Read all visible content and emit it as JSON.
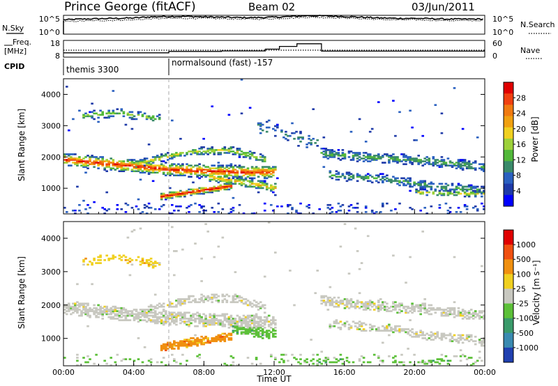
{
  "header": {
    "station": "Prince George (fitACF)",
    "beam": "Beam 02",
    "date": "03/Jun/2011"
  },
  "chart_data": [
    {
      "type": "line",
      "panel": "noise",
      "left_label": "N.Sky",
      "right_label": "N.Search",
      "left_ticks": [
        "10^5",
        "10^0"
      ],
      "right_ticks": [
        "10^5",
        "10^0"
      ],
      "x": [
        0,
        1,
        2,
        3,
        4,
        5,
        6,
        7,
        8,
        9,
        10,
        11,
        12,
        13,
        14,
        15,
        16,
        17,
        18,
        19,
        20,
        21,
        22,
        23,
        24
      ],
      "series": [
        {
          "name": "N.Sky",
          "values": [
            3.8,
            4.0,
            4.1,
            4.2,
            4.3,
            4.6,
            4.7,
            4.7,
            4.6,
            4.5,
            4.4,
            4.4,
            4.5,
            4.7,
            4.9,
            4.8,
            4.7,
            4.5,
            4.3,
            4.2,
            4.2,
            4.1,
            4.0,
            4.0,
            4.0
          ]
        },
        {
          "name": "N.Search",
          "values": [
            3.3,
            3.5,
            3.6,
            3.7,
            3.8,
            4.1,
            4.2,
            4.2,
            4.2,
            4.1,
            4.0,
            4.0,
            4.1,
            4.3,
            4.5,
            4.4,
            4.3,
            4.1,
            3.9,
            3.8,
            3.8,
            3.7,
            3.6,
            3.6,
            3.6
          ]
        }
      ],
      "ylim": [
        0,
        5
      ]
    },
    {
      "type": "line",
      "panel": "frequency",
      "left_label_1": "Freq.",
      "left_label_2": "[MHz]",
      "right_label": "Nave",
      "left_ticks": [
        18,
        8
      ],
      "right_ticks": [
        60,
        0
      ],
      "segments": [
        {
          "x0": 0,
          "x1": 6,
          "freq": 10.6
        },
        {
          "x0": 6,
          "x1": 9,
          "freq": 11.4
        },
        {
          "x0": 9,
          "x1": 11.5,
          "freq": 11.7
        },
        {
          "x0": 11.5,
          "x1": 12.3,
          "freq": 12.8
        },
        {
          "x0": 12.3,
          "x1": 13.3,
          "freq": 14.4
        },
        {
          "x0": 13.3,
          "x1": 14.7,
          "freq": 16.0
        },
        {
          "x0": 14.7,
          "x1": 24,
          "freq": 11.6
        }
      ],
      "nave": 25,
      "flim": [
        8,
        18
      ]
    },
    {
      "type": "table",
      "panel": "cpid",
      "label": "CPID",
      "modes": [
        {
          "start": 0,
          "name": "themis 3300"
        },
        {
          "start": 6,
          "name": "normalsound (fast) -157"
        }
      ]
    },
    {
      "type": "heatmap",
      "panel": "power",
      "ylabel": "Slant Range [km]",
      "yticks": [
        1000,
        2000,
        3000,
        4000
      ],
      "ylim": [
        180,
        4500
      ],
      "colorbar_label": "Power [dB]",
      "colorbar_ticks": [
        4,
        8,
        12,
        16,
        20,
        24,
        28
      ],
      "colors": [
        "#0000ff",
        "#1e3aa8",
        "#2a60c0",
        "#3a8a6a",
        "#52b83a",
        "#9dd13a",
        "#f0d020",
        "#f0a010",
        "#f07a10",
        "#f04010",
        "#e00000"
      ],
      "bands": [
        {
          "t": [
            0,
            6,
            10,
            12
          ],
          "r": [
            1900,
            1580,
            1500,
            1500
          ],
          "w": 420,
          "peak": 9,
          "density": 0.85
        },
        {
          "t": [
            4,
            7,
            9.5,
            11.5
          ],
          "r": [
            1750,
            2150,
            2200,
            1900
          ],
          "w": 260,
          "peak": 5,
          "density": 0.7
        },
        {
          "t": [
            1,
            3,
            5.5
          ],
          "r": [
            3300,
            3400,
            3200
          ],
          "w": 280,
          "peak": 4,
          "density": 0.5
        },
        {
          "t": [
            5.5,
            8,
            9.5
          ],
          "r": [
            720,
            930,
            1060
          ],
          "w": 230,
          "peak": 10,
          "density": 0.9
        },
        {
          "t": [
            8.2,
            10,
            12
          ],
          "r": [
            1350,
            1200,
            1000
          ],
          "w": 320,
          "peak": 6,
          "density": 0.75
        },
        {
          "t": [
            14.6,
            18,
            21,
            24
          ],
          "r": [
            2100,
            1950,
            1850,
            1650
          ],
          "w": 330,
          "peak": 3,
          "density": 0.7
        },
        {
          "t": [
            15,
            18,
            21,
            24
          ],
          "r": [
            1400,
            1300,
            1050,
            900
          ],
          "w": 300,
          "peak": 3,
          "density": 0.6
        },
        {
          "t": [
            20,
            24
          ],
          "r": [
            850,
            800
          ],
          "w": 200,
          "peak": 5,
          "density": 0.55
        },
        {
          "t": [
            11,
            13,
            14.5
          ],
          "r": [
            3000,
            2600,
            2400
          ],
          "w": 500,
          "peak": 2,
          "density": 0.25
        }
      ]
    },
    {
      "type": "heatmap",
      "panel": "velocity",
      "ylabel": "Slant Range [km]",
      "yticks": [
        1000,
        2000,
        3000,
        4000
      ],
      "ylim": [
        180,
        4500
      ],
      "colorbar_label": "Velocity [m s⁻¹]",
      "colorbar_ticks": [
        "1000",
        "500",
        "100",
        "25",
        "-25",
        "-100",
        "-500",
        "-1000"
      ],
      "colors": [
        "#2040b0",
        "#3a8ab0",
        "#3a9a6a",
        "#5cc038",
        "#c8c8c0",
        "#f0d020",
        "#f09010",
        "#f05010",
        "#e00000"
      ],
      "bands": [
        {
          "t": [
            0,
            6,
            10,
            12
          ],
          "r": [
            1900,
            1580,
            1500,
            1500
          ],
          "w": 420,
          "color": 4,
          "density": 0.8
        },
        {
          "t": [
            4,
            7,
            9.5,
            11.5
          ],
          "r": [
            1750,
            2150,
            2200,
            1900
          ],
          "w": 260,
          "color": 4,
          "density": 0.6
        },
        {
          "t": [
            1,
            3,
            5.5
          ],
          "r": [
            3300,
            3400,
            3200
          ],
          "w": 280,
          "color": 5,
          "density": 0.5
        },
        {
          "t": [
            5.5,
            8,
            9.5
          ],
          "r": [
            720,
            930,
            1060
          ],
          "w": 260,
          "color": 6,
          "density": 0.9
        },
        {
          "t": [
            9.5,
            10.5,
            12
          ],
          "r": [
            1300,
            1200,
            1100
          ],
          "w": 330,
          "color": 3,
          "density": 0.85
        },
        {
          "t": [
            14.6,
            18,
            21,
            24
          ],
          "r": [
            2100,
            1950,
            1850,
            1650
          ],
          "w": 330,
          "color": 4,
          "density": 0.7
        },
        {
          "t": [
            15,
            18,
            21,
            24
          ],
          "r": [
            1400,
            1300,
            1050,
            900
          ],
          "w": 300,
          "color": 4,
          "density": 0.55
        },
        {
          "t": [
            13,
            16,
            22
          ],
          "r": [
            350,
            300,
            280
          ],
          "w": 120,
          "color": 3,
          "density": 0.35
        }
      ]
    }
  ],
  "time_axis": {
    "xlabel": "Time UT",
    "ticks": [
      "00:00",
      "04:00",
      "08:00",
      "12:00",
      "16:00",
      "20:00",
      "00:00"
    ],
    "xlim": [
      0,
      24
    ]
  }
}
